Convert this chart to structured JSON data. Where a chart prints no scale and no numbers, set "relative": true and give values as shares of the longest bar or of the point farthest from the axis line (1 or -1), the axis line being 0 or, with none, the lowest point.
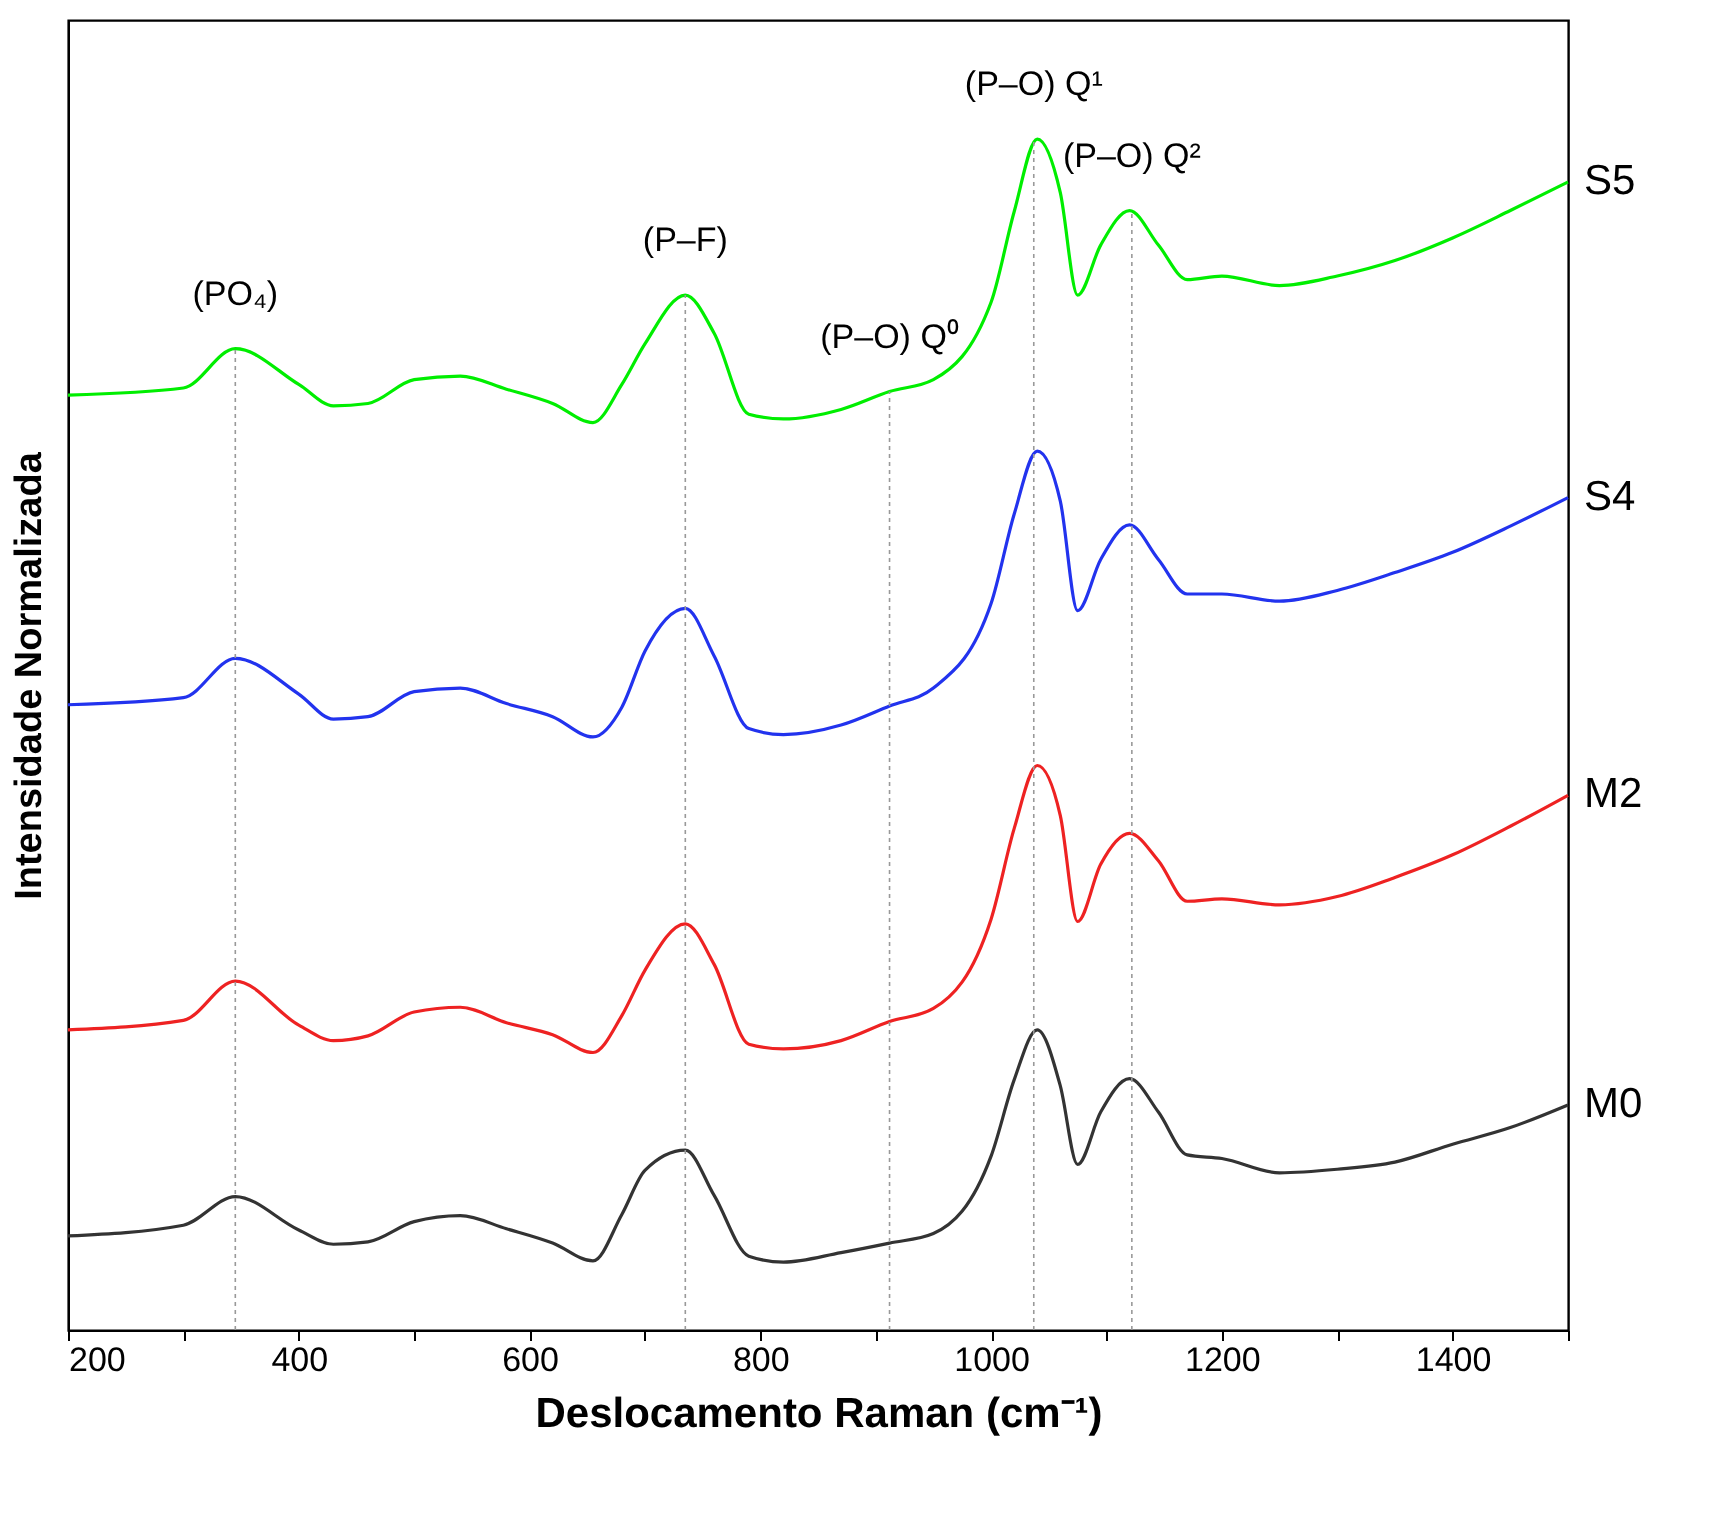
{
  "chart_data": {
    "type": "line",
    "relative": true,
    "xlabel": "Deslocamento Raman (cm⁻¹)",
    "ylabel": "Intensidade Normalizada",
    "x": [
      200,
      300,
      345,
      400,
      430,
      460,
      500,
      540,
      580,
      620,
      655,
      680,
      700,
      735,
      760,
      790,
      820,
      870,
      912,
      950,
      1000,
      1020,
      1040,
      1060,
      1075,
      1095,
      1120,
      1145,
      1170,
      1200,
      1250,
      1300,
      1350,
      1400,
      1450,
      1500
    ],
    "xlim": [
      200,
      1500
    ],
    "xticks": [
      200,
      {
        "value": 300,
        "label": null
      },
      400,
      {
        "value": 500,
        "label": null
      },
      600,
      {
        "value": 700,
        "label": null
      },
      800,
      {
        "value": 900,
        "label": null
      },
      1000,
      {
        "value": 1100,
        "label": null
      },
      1200,
      {
        "value": 1300,
        "label": null
      },
      1400,
      {
        "value": 1500,
        "label": null
      }
    ],
    "tick_labels": "x",
    "grid": false,
    "legend": false,
    "marker": "none",
    "line_style": "solid",
    "series": [
      {
        "name": "S5",
        "color": "#00ee00",
        "values": [
          0.785,
          0.791,
          0.824,
          0.794,
          0.776,
          0.778,
          0.798,
          0.801,
          0.79,
          0.778,
          0.762,
          0.794,
          0.828,
          0.869,
          0.837,
          0.769,
          0.765,
          0.773,
          0.788,
          0.798,
          0.863,
          0.939,
          1.0,
          0.955,
          0.869,
          0.911,
          0.94,
          0.911,
          0.882,
          0.885,
          0.877,
          0.885,
          0.898,
          0.917,
          0.94,
          0.964
        ]
      },
      {
        "name": "S4",
        "color": "#2233ee",
        "values": [
          0.525,
          0.531,
          0.564,
          0.534,
          0.513,
          0.515,
          0.536,
          0.539,
          0.526,
          0.515,
          0.498,
          0.523,
          0.57,
          0.606,
          0.566,
          0.505,
          0.5,
          0.508,
          0.524,
          0.539,
          0.61,
          0.685,
          0.738,
          0.696,
          0.604,
          0.647,
          0.676,
          0.647,
          0.618,
          0.618,
          0.612,
          0.621,
          0.636,
          0.653,
          0.675,
          0.699
        ]
      },
      {
        "name": "M2",
        "color": "#ee2222",
        "values": [
          0.252,
          0.26,
          0.293,
          0.256,
          0.243,
          0.247,
          0.267,
          0.271,
          0.258,
          0.248,
          0.233,
          0.264,
          0.302,
          0.341,
          0.307,
          0.24,
          0.236,
          0.243,
          0.259,
          0.27,
          0.345,
          0.421,
          0.474,
          0.432,
          0.343,
          0.391,
          0.417,
          0.394,
          0.36,
          0.362,
          0.357,
          0.364,
          0.38,
          0.399,
          0.423,
          0.449
        ]
      },
      {
        "name": "M0",
        "color": "#333333",
        "values": [
          0.079,
          0.088,
          0.112,
          0.084,
          0.072,
          0.074,
          0.091,
          0.096,
          0.085,
          0.073,
          0.058,
          0.097,
          0.134,
          0.151,
          0.113,
          0.062,
          0.057,
          0.065,
          0.073,
          0.081,
          0.146,
          0.21,
          0.252,
          0.205,
          0.139,
          0.183,
          0.211,
          0.183,
          0.147,
          0.144,
          0.132,
          0.135,
          0.141,
          0.156,
          0.17,
          0.189
        ]
      }
    ],
    "ref_lines": [
      {
        "axis": "x",
        "value": 345,
        "color": "#999999",
        "line_style": "dotted",
        "label": "(PO₄)"
      },
      {
        "axis": "x",
        "value": 735,
        "color": "#999999",
        "line_style": "dotted",
        "label": "(P–F)"
      },
      {
        "axis": "x",
        "value": 912,
        "color": "#999999",
        "line_style": "dotted",
        "label": "(P–O) Q⁰"
      },
      {
        "axis": "x",
        "value": 1037,
        "color": "#999999",
        "line_style": "dotted",
        "label": "(P–O) Q¹"
      },
      {
        "axis": "x",
        "value": 1122,
        "color": "#999999",
        "line_style": "dotted",
        "label": "(P–O) Q²"
      }
    ]
  }
}
